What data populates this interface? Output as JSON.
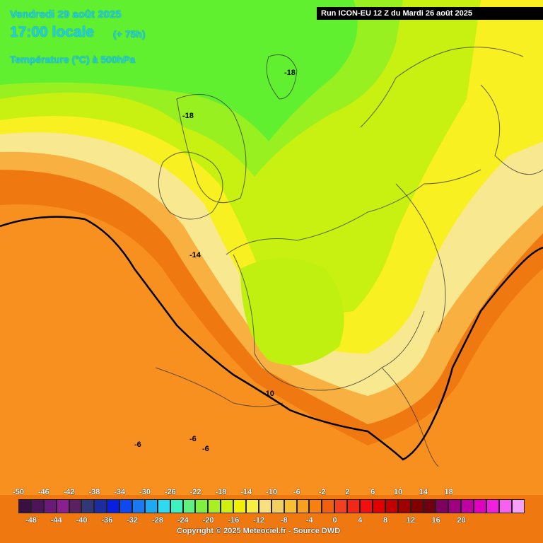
{
  "header": {
    "date": "Vendredi 29 août 2025",
    "time": "17:00 locale",
    "lead": "(+ 75h)",
    "field": "Température (°C) à 500hPa",
    "run": "Run ICON-EU 12 Z du Mardi 26 août 2025"
  },
  "isolines": {
    "m18_north": "-18",
    "m18_scot": "-18",
    "m14": "-14",
    "m10": "-10",
    "m6_a": "-6",
    "m6_b": "-6",
    "m6_c": "-6"
  },
  "legend": {
    "top_labels": [
      "-50",
      "-46",
      "-42",
      "-38",
      "-34",
      "-30",
      "-26",
      "-22",
      "-18",
      "-14",
      "-10",
      "-6",
      "-2",
      "2",
      "6",
      "10",
      "14",
      "18"
    ],
    "bottom_labels": [
      "-48",
      "-44",
      "-40",
      "-36",
      "-32",
      "-28",
      "-24",
      "-20",
      "-16",
      "-12",
      "-8",
      "-4",
      "0",
      "4",
      "8",
      "12",
      "16",
      "20"
    ],
    "colors": [
      "#3a1040",
      "#4e1458",
      "#6a1a78",
      "#8a2090",
      "#5a2060",
      "#303878",
      "#1c2ca0",
      "#0a1ee0",
      "#1048f0",
      "#1a78f0",
      "#20a8f0",
      "#30d8f0",
      "#40f0c0",
      "#60f080",
      "#80f040",
      "#a8f020",
      "#d0f010",
      "#f0f000",
      "#f8f040",
      "#f8e080",
      "#f0d060",
      "#f8c030",
      "#f8a020",
      "#f88010",
      "#f06010",
      "#f04020",
      "#f02818",
      "#f01010",
      "#e00000",
      "#c00000",
      "#a00000",
      "#800000",
      "#700010",
      "#800060",
      "#a00080",
      "#c000a0",
      "#e000c0",
      "#f020e0",
      "#f860f0",
      "#f8a0f8"
    ]
  },
  "copyright": "Copyright © 2025 Meteociel.fr - Source DWD"
}
